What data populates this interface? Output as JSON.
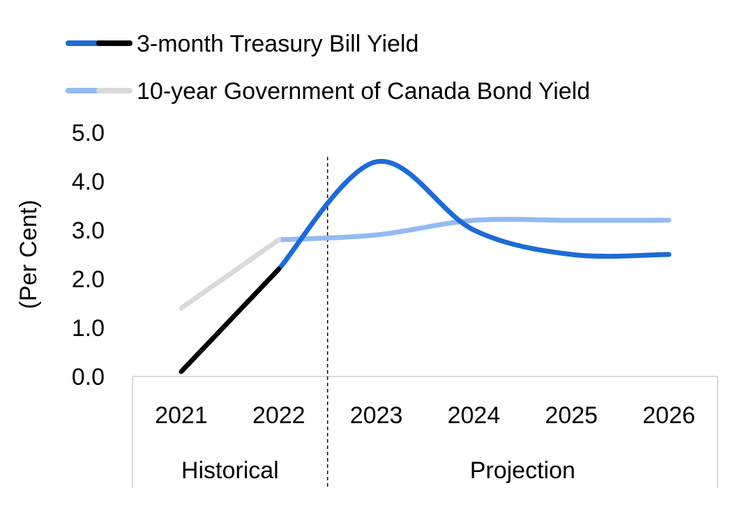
{
  "chart_data": {
    "type": "line",
    "title": "",
    "xlabel": "",
    "ylabel": "(Per Cent)",
    "ylim": [
      0,
      5
    ],
    "yticks": [
      "0.0",
      "1.0",
      "2.0",
      "3.0",
      "4.0",
      "5.0"
    ],
    "categories": [
      "2021",
      "2022",
      "2023",
      "2024",
      "2025",
      "2026"
    ],
    "groups": [
      {
        "label": "Historical",
        "categories": [
          "2021",
          "2022"
        ]
      },
      {
        "label": "Projection",
        "categories": [
          "2023",
          "2024",
          "2025",
          "2026"
        ]
      }
    ],
    "legend_position": "top-left",
    "grid": false,
    "series": [
      {
        "name": "3-month Treasury Bill Yield",
        "values": [
          0.1,
          2.2,
          4.4,
          3.0,
          2.5,
          2.5
        ],
        "color_projection": "#1f6ad6",
        "color_historical": "#000000"
      },
      {
        "name": "10-year Government of Canada Bond Yield",
        "values": [
          1.4,
          2.8,
          2.9,
          3.2,
          3.2,
          3.2
        ],
        "color_projection": "#93baf3",
        "color_historical": "#d9d9d9"
      }
    ]
  }
}
